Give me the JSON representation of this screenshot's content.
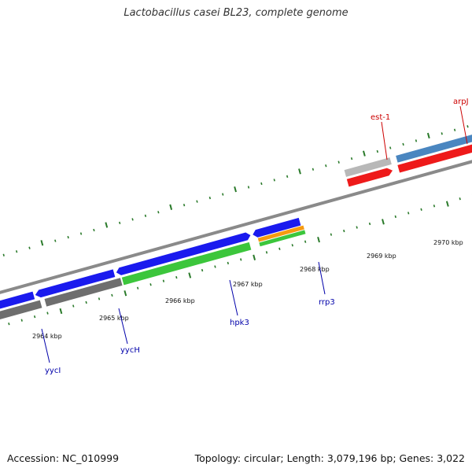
{
  "title": "Lactobacillus casei BL23, complete genome",
  "footer": {
    "accession": "Accession: NC_010999",
    "summary": "Topology: circular; Length: 3,079,196 bp; Genes: 3,022"
  },
  "colors": {
    "forward_cds": "#1a1aee",
    "reverse_cds": "#ee1a1a",
    "green_feature": "#3cc63c",
    "orange_feature": "#f59a10",
    "steelblue_feature": "#4a86c0",
    "grey_feature": "#b8b8b8",
    "dark_grey_feature": "#6e6e6e",
    "tick_green": "#2a7a2a"
  },
  "scale_labels": [
    "2964 kbp",
    "2965 kbp",
    "2966 kbp",
    "2967 kbp",
    "2968 kbp",
    "2969 kbp",
    "2970 kbp"
  ],
  "gene_labels": [
    {
      "name": "est-1",
      "color": "#cc0000"
    },
    {
      "name": "arpJ",
      "color": "#cc0000"
    },
    {
      "name": "hpk3",
      "color": "#0000aa"
    },
    {
      "name": "rrp3",
      "color": "#0000aa"
    },
    {
      "name": "yycH",
      "color": "#0000aa"
    },
    {
      "name": "yycI",
      "color": "#0000aa"
    }
  ]
}
